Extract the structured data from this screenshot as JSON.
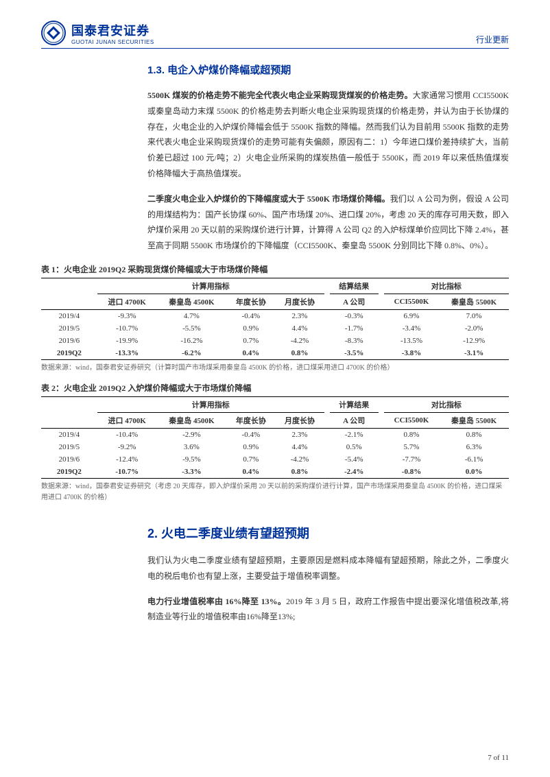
{
  "header": {
    "logo_cn": "国泰君安证券",
    "logo_en": "GUOTAI JUNAN SECURITIES",
    "tag": "行业更新",
    "logo_color": "#003399"
  },
  "section13": {
    "title": "1.3.  电企入炉煤价降幅或超预期",
    "p1_bold": "5500K 煤炭的价格走势不能完全代表火电企业采购现货煤炭的价格走势。",
    "p1_rest": "大家通常习惯用 CCI5500K 或秦皇岛动力末煤 5500K 的价格走势去判断火电企业采购现货煤的价格走势，并认为由于长协煤的存在，火电企业的入炉煤价降幅会低于 5500K 指数的降幅。然而我们认为目前用 5500K 指数的走势来代表火电企业采购现货煤价的走势可能有失偏颇，原因有二：1）今年进口煤价差持续扩大，当前价差已超过 100 元/吨；2）火电企业所采购的煤炭热值一般低于 5500K，而 2019 年以来低热值煤炭价格降幅大于高热值煤炭。",
    "p2_bold": "二季度火电企业入炉煤价的下降幅度或大于 5500K 市场煤价降幅。",
    "p2_rest": "我们以 A 公司为例，假设 A 公司的用煤结构为：国产长协煤 60%、国产市场煤 20%、进口煤 20%，考虑 20 天的库存可用天数，即入炉煤价采用 20 天以前的采购煤价进行计算，计算得 A 公司 Q2 的入炉标煤单价应同比下降 2.4%，甚至高于同期 5500K 市场煤价的下降幅度（CCI5500K、秦皇岛 5500K 分别同比下降 0.8%、0%）。"
  },
  "table1": {
    "title": "表 1：火电企业 2019Q2 采购现货煤价降幅或大于市场煤价降幅",
    "group_headers": [
      "计算用指标",
      "结算结果",
      "对比指标"
    ],
    "columns": [
      "",
      "进口 4700K",
      "秦皇岛 4500K",
      "年度长协",
      "月度长协",
      "A 公司",
      "CCI5500K",
      "秦皇岛 5500K"
    ],
    "rows": [
      [
        "2019/4",
        "-9.3%",
        "4.7%",
        "-0.4%",
        "2.3%",
        "-0.3%",
        "6.9%",
        "7.0%"
      ],
      [
        "2019/5",
        "-10.7%",
        "-5.5%",
        "0.9%",
        "4.4%",
        "-1.7%",
        "-3.4%",
        "-2.0%"
      ],
      [
        "2019/6",
        "-19.9%",
        "-16.2%",
        "0.7%",
        "-4.2%",
        "-8.3%",
        "-13.5%",
        "-12.9%"
      ],
      [
        "2019Q2",
        "-13.3%",
        "-6.2%",
        "0.4%",
        "0.8%",
        "-3.5%",
        "-3.8%",
        "-3.1%"
      ]
    ],
    "source": "数据来源：wind，国泰君安证券研究（计算时国产市场煤采用秦皇岛 4500K 的价格，进口煤采用进口 4700K 的价格）"
  },
  "table2": {
    "title": "表 2：火电企业 2019Q2 入炉煤价降幅或大于市场煤价降幅",
    "group_headers": [
      "计算用指标",
      "计算结果",
      "对比指标"
    ],
    "columns": [
      "",
      "进口 4700K",
      "秦皇岛 4500K",
      "年度长协",
      "月度长协",
      "A 公司",
      "CCI5500K",
      "秦皇岛 5500K"
    ],
    "rows": [
      [
        "2019/4",
        "-10.4%",
        "-2.9%",
        "-0.4%",
        "2.3%",
        "-2.1%",
        "0.8%",
        "0.8%"
      ],
      [
        "2019/5",
        "-9.2%",
        "3.6%",
        "0.9%",
        "4.4%",
        "0.5%",
        "5.7%",
        "6.3%"
      ],
      [
        "2019/6",
        "-12.4%",
        "-9.5%",
        "0.7%",
        "-4.2%",
        "-5.4%",
        "-7.7%",
        "-6.1%"
      ],
      [
        "2019Q2",
        "-10.7%",
        "-3.3%",
        "0.4%",
        "0.8%",
        "-2.4%",
        "-0.8%",
        "0.0%"
      ]
    ],
    "source": "数据来源：wind，国泰君安证券研究（考虑 20 天库存，即入炉煤价采用 20 天以前的采购煤价进行计算，国产市场煤采用秦皇岛 4500K 的价格，进口煤采用进口 4700K 的价格）"
  },
  "section2": {
    "title": "2.  火电二季度业绩有望超预期",
    "p1": "我们认为火电二季度业绩有望超预期，主要原因是燃料成本降幅有望超预期，除此之外，二季度火电的税后电价也有望上涨，主要受益于增值税率调整。",
    "p2_bold": "电力行业增值税率由 16%降至 13%。",
    "p2_rest": "2019 年 3 月 5 日，政府工作报告中提出要深化增值税改革,将制造业等行业的增值税率由16%降至13%;"
  },
  "footer": {
    "page": "7 of 11"
  }
}
